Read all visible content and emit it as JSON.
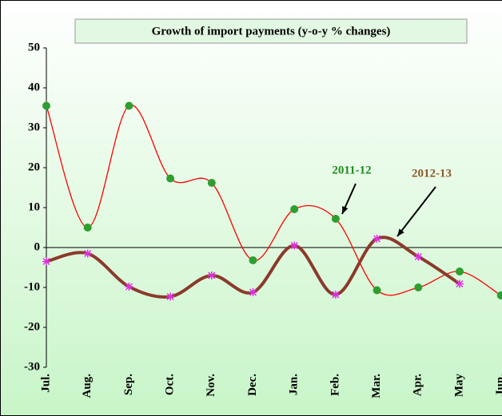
{
  "chart_data": {
    "type": "line",
    "title": "Growth of import payments (y-o-y %  changes)",
    "categories": [
      "Jul.",
      "Aug.",
      "Sep.",
      "Oct.",
      "Nov.",
      "Dec.",
      "Jan.",
      "Feb.",
      "Mar.",
      "Apr.",
      "May",
      "Jun."
    ],
    "series": [
      {
        "name": "2011-12",
        "color": "#ff0000",
        "marker_color": "#2e9e2e",
        "label_color": "#1f8a1f",
        "values": [
          35.5,
          5,
          35.5,
          17.3,
          16.2,
          -3.2,
          9.6,
          7.2,
          -10.7,
          -10,
          -6,
          -12
        ]
      },
      {
        "name": "2012-13",
        "color": "#8b3a2b",
        "marker_color": "#e030e0",
        "label_color": "#8b5a2b",
        "values": [
          -3.5,
          -1.5,
          -9.8,
          -12.3,
          -7,
          -11.2,
          0.5,
          -11.8,
          2.2,
          -2.3,
          -9.1,
          null
        ]
      }
    ],
    "ylim": [
      -30,
      50
    ],
    "yticks": [
      -30,
      -20,
      -10,
      0,
      10,
      20,
      30,
      40,
      50
    ],
    "grid": false
  }
}
